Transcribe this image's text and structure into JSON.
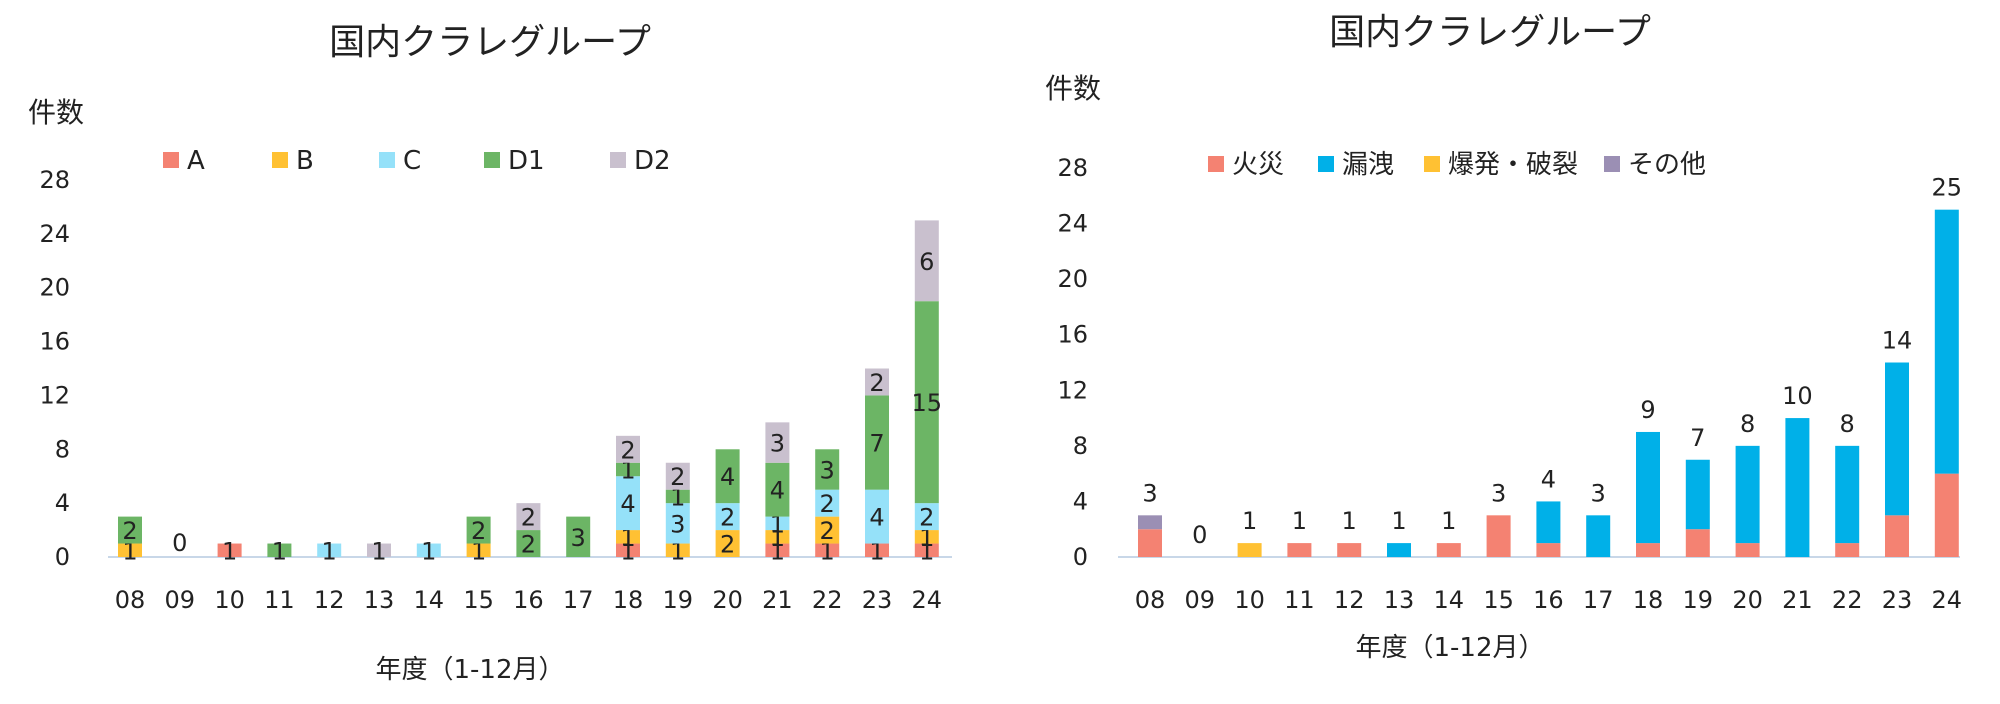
{
  "colors": {
    "A": "#F48272",
    "B": "#FFC133",
    "C": "#95E1F9",
    "D1": "#6CB565",
    "D2": "#C9C0CE",
    "fire": "#F48272",
    "leak": "#00B0E8",
    "explosion": "#FFC133",
    "other": "#9B8FB4",
    "axis": "#C8D7E8"
  },
  "chart_data": [
    {
      "type": "bar",
      "stacked": true,
      "title": "国内クラレグループ",
      "ylabel": "件数",
      "xlabel": "年度（1-12月）",
      "ylim": [
        0,
        28
      ],
      "yticks": [
        0,
        4,
        8,
        12,
        16,
        20,
        24,
        28
      ],
      "legend_position": "top",
      "categories": [
        "08",
        "09",
        "10",
        "11",
        "12",
        "13",
        "14",
        "15",
        "16",
        "17",
        "18",
        "19",
        "20",
        "21",
        "22",
        "23",
        "24"
      ],
      "series": [
        {
          "name": "A",
          "colorKey": "A",
          "values": [
            0,
            0,
            1,
            0,
            0,
            0,
            0,
            0,
            0,
            0,
            1,
            0,
            0,
            1,
            1,
            1,
            1
          ]
        },
        {
          "name": "B",
          "colorKey": "B",
          "values": [
            1,
            0,
            0,
            0,
            0,
            0,
            0,
            1,
            0,
            0,
            1,
            1,
            2,
            1,
            2,
            0,
            1
          ]
        },
        {
          "name": "C",
          "colorKey": "C",
          "values": [
            0,
            0,
            0,
            0,
            1,
            0,
            1,
            0,
            0,
            0,
            4,
            3,
            2,
            1,
            2,
            4,
            2
          ]
        },
        {
          "name": "D1",
          "colorKey": "D1",
          "values": [
            2,
            0,
            0,
            1,
            0,
            0,
            0,
            2,
            2,
            3,
            1,
            1,
            4,
            4,
            3,
            7,
            15
          ]
        },
        {
          "name": "D2",
          "colorKey": "D2",
          "values": [
            0,
            0,
            0,
            0,
            0,
            1,
            0,
            0,
            2,
            0,
            2,
            2,
            0,
            3,
            0,
            2,
            6
          ]
        }
      ],
      "show_segment_labels": true,
      "zero_labels": [
        "",
        "0",
        "",
        "",
        "",
        "",
        "",
        "",
        "",
        "",
        "",
        "",
        "",
        "",
        "",
        "",
        ""
      ]
    },
    {
      "type": "bar",
      "stacked": true,
      "title": "国内クラレグループ",
      "ylabel": "件数",
      "xlabel": "年度（1-12月）",
      "ylim": [
        0,
        28
      ],
      "yticks": [
        0,
        4,
        8,
        12,
        16,
        20,
        24,
        28
      ],
      "legend_position": "top",
      "categories": [
        "08",
        "09",
        "10",
        "11",
        "12",
        "13",
        "14",
        "15",
        "16",
        "17",
        "18",
        "19",
        "20",
        "21",
        "22",
        "23",
        "24"
      ],
      "series": [
        {
          "name": "火災",
          "colorKey": "fire",
          "values": [
            2,
            0,
            0,
            1,
            1,
            0,
            1,
            3,
            1,
            0,
            1,
            2,
            1,
            0,
            1,
            3,
            6
          ]
        },
        {
          "name": "漏洩",
          "colorKey": "leak",
          "values": [
            0,
            0,
            0,
            0,
            0,
            1,
            0,
            0,
            3,
            3,
            8,
            5,
            7,
            10,
            7,
            11,
            19
          ]
        },
        {
          "name": "爆発・破裂",
          "colorKey": "explosion",
          "values": [
            0,
            0,
            1,
            0,
            0,
            0,
            0,
            0,
            0,
            0,
            0,
            0,
            0,
            0,
            0,
            0,
            0
          ]
        },
        {
          "name": "その他",
          "colorKey": "other",
          "values": [
            1,
            0,
            0,
            0,
            0,
            0,
            0,
            0,
            0,
            0,
            0,
            0,
            0,
            0,
            0,
            0,
            0
          ]
        }
      ],
      "totals": [
        "3",
        "0",
        "1",
        "1",
        "1",
        "1",
        "1",
        "3",
        "4",
        "3",
        "9",
        "7",
        "8",
        "10",
        "8",
        "14",
        "25"
      ],
      "show_segment_labels": false
    }
  ]
}
